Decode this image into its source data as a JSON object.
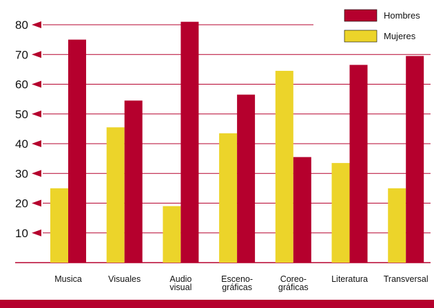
{
  "chart_data": {
    "type": "bar",
    "categories": [
      [
        "Musica"
      ],
      [
        "Visuales"
      ],
      [
        "Audio",
        "visual"
      ],
      [
        "Esceno-",
        "gráficas"
      ],
      [
        "Coreo-",
        "gráficas"
      ],
      [
        "Literatura"
      ],
      [
        "Transversal"
      ]
    ],
    "series": [
      {
        "name": "Mujeres",
        "color": "#ecd42a",
        "values": [
          25,
          45.5,
          19,
          43.5,
          64.5,
          33.5,
          25
        ]
      },
      {
        "name": "Hombres",
        "color": "#b5002d",
        "values": [
          75,
          54.5,
          81,
          56.5,
          35.5,
          66.5,
          69.5
        ]
      }
    ],
    "yticks": [
      10,
      20,
      30,
      40,
      50,
      60,
      70,
      80
    ],
    "ylim": [
      0,
      80
    ],
    "grid": true,
    "legend_position": "top-right",
    "colors": {
      "accent": "#b5002d",
      "grid": "#b5002d",
      "footer_band": "#b5002d"
    }
  }
}
